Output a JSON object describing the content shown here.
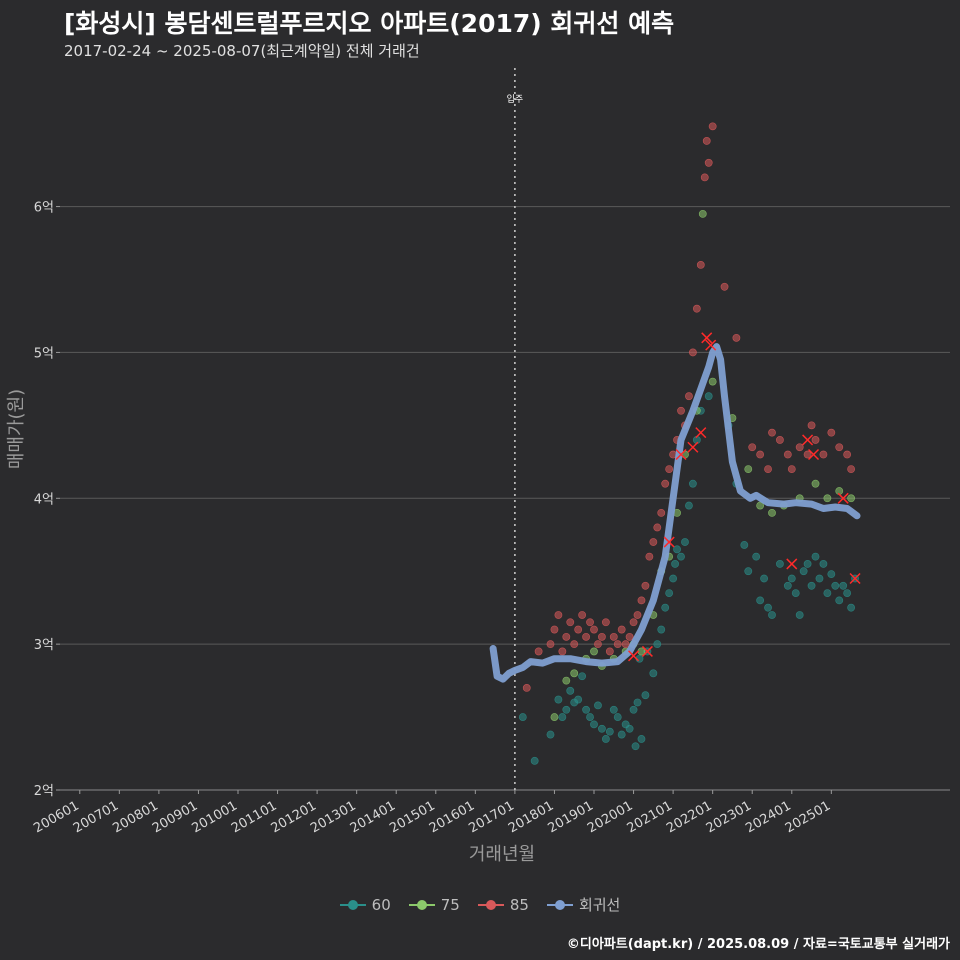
{
  "header": {
    "title": "[화성시] 봉담센트럴푸르지오 아파트(2017) 회귀선 예측",
    "subtitle": "2017-02-24 ~ 2025-08-07(최근계약일) 전체 거래건"
  },
  "caption": "©디아파트(dapt.kr) / 2025.08.09 / 자료=국토교통부 실거래가",
  "colors": {
    "background": "#2b2b2d",
    "grid": "#5a5a5a",
    "s60": "#2a8f8a",
    "s75": "#8cc96b",
    "s85": "#d9595a",
    "regression": "#7f9fd1",
    "highlight": "#ff2a2a"
  },
  "legend": [
    {
      "label": "60",
      "color": "#2a8f8a"
    },
    {
      "label": "75",
      "color": "#8cc96b"
    },
    {
      "label": "85",
      "color": "#d9595a"
    },
    {
      "label": "회귀선",
      "color": "#7f9fd1"
    }
  ],
  "chart_data": {
    "type": "scatter",
    "title": "[화성시] 봉담센트럴푸르지오 아파트(2017) 회귀선 예측",
    "xlabel": "거래년월",
    "ylabel": "매매가(원)",
    "xlim": [
      2005.5,
      2028.0
    ],
    "ylim": [
      2.0,
      6.95
    ],
    "x_ticks": [
      "200601",
      "200701",
      "200801",
      "200901",
      "201001",
      "201101",
      "201201",
      "201301",
      "201401",
      "201501",
      "201601",
      "201701",
      "201801",
      "201901",
      "202001",
      "202101",
      "202201",
      "202301",
      "202401",
      "202501"
    ],
    "y_ticks": [
      {
        "value": 2,
        "label": "2억"
      },
      {
        "value": 3,
        "label": "3억"
      },
      {
        "value": 4,
        "label": "4억"
      },
      {
        "value": 5,
        "label": "5억"
      },
      {
        "value": 6,
        "label": "6억"
      }
    ],
    "annotation": {
      "x": 2017.0,
      "label": "입주"
    },
    "series": [
      {
        "name": "60",
        "color": "#2a8f8a",
        "points": [
          [
            2017.2,
            2.5
          ],
          [
            2017.5,
            2.2
          ],
          [
            2017.9,
            2.38
          ],
          [
            2018.1,
            2.62
          ],
          [
            2018.2,
            2.5
          ],
          [
            2018.3,
            2.55
          ],
          [
            2018.4,
            2.68
          ],
          [
            2018.5,
            2.6
          ],
          [
            2018.6,
            2.62
          ],
          [
            2018.7,
            2.78
          ],
          [
            2018.8,
            2.55
          ],
          [
            2018.9,
            2.5
          ],
          [
            2019.0,
            2.45
          ],
          [
            2019.1,
            2.58
          ],
          [
            2019.2,
            2.42
          ],
          [
            2019.3,
            2.35
          ],
          [
            2019.4,
            2.4
          ],
          [
            2019.5,
            2.55
          ],
          [
            2019.6,
            2.5
          ],
          [
            2019.7,
            2.38
          ],
          [
            2019.8,
            2.45
          ],
          [
            2019.9,
            2.42
          ],
          [
            2020.0,
            2.55
          ],
          [
            2020.05,
            2.3
          ],
          [
            2020.1,
            2.6
          ],
          [
            2020.15,
            2.9
          ],
          [
            2020.2,
            2.35
          ],
          [
            2020.3,
            2.65
          ],
          [
            2020.35,
            2.95
          ],
          [
            2020.5,
            2.8
          ],
          [
            2020.6,
            3.0
          ],
          [
            2020.7,
            3.1
          ],
          [
            2020.8,
            3.25
          ],
          [
            2020.9,
            3.35
          ],
          [
            2021.0,
            3.45
          ],
          [
            2021.05,
            3.55
          ],
          [
            2021.1,
            3.65
          ],
          [
            2021.2,
            3.6
          ],
          [
            2021.3,
            3.7
          ],
          [
            2021.4,
            3.95
          ],
          [
            2021.5,
            4.1
          ],
          [
            2021.6,
            4.4
          ],
          [
            2021.7,
            4.6
          ],
          [
            2021.9,
            4.7
          ],
          [
            2022.4,
            4.5
          ],
          [
            2022.6,
            4.1
          ],
          [
            2022.8,
            3.68
          ],
          [
            2022.9,
            3.5
          ],
          [
            2023.1,
            3.6
          ],
          [
            2023.2,
            3.3
          ],
          [
            2023.3,
            3.45
          ],
          [
            2023.4,
            3.25
          ],
          [
            2023.5,
            3.2
          ],
          [
            2023.7,
            3.55
          ],
          [
            2023.9,
            3.4
          ],
          [
            2024.0,
            3.45
          ],
          [
            2024.1,
            3.35
          ],
          [
            2024.2,
            3.2
          ],
          [
            2024.3,
            3.5
          ],
          [
            2024.4,
            3.55
          ],
          [
            2024.5,
            3.4
          ],
          [
            2024.6,
            3.6
          ],
          [
            2024.7,
            3.45
          ],
          [
            2024.8,
            3.55
          ],
          [
            2024.9,
            3.35
          ],
          [
            2025.0,
            3.48
          ],
          [
            2025.1,
            3.4
          ],
          [
            2025.2,
            3.3
          ],
          [
            2025.3,
            3.4
          ],
          [
            2025.4,
            3.35
          ],
          [
            2025.5,
            3.25
          ],
          [
            2025.6,
            3.45
          ]
        ]
      },
      {
        "name": "75",
        "color": "#8cc96b",
        "points": [
          [
            2018.0,
            2.5
          ],
          [
            2018.3,
            2.75
          ],
          [
            2018.5,
            2.8
          ],
          [
            2018.8,
            2.9
          ],
          [
            2019.0,
            2.95
          ],
          [
            2019.2,
            2.85
          ],
          [
            2019.5,
            2.9
          ],
          [
            2019.8,
            2.95
          ],
          [
            2020.0,
            3.0
          ],
          [
            2020.2,
            2.95
          ],
          [
            2020.5,
            3.2
          ],
          [
            2020.7,
            3.5
          ],
          [
            2020.9,
            3.6
          ],
          [
            2021.1,
            3.9
          ],
          [
            2021.3,
            4.3
          ],
          [
            2021.6,
            4.6
          ],
          [
            2021.75,
            5.95
          ],
          [
            2022.0,
            4.8
          ],
          [
            2022.5,
            4.55
          ],
          [
            2022.9,
            4.2
          ],
          [
            2023.2,
            3.95
          ],
          [
            2023.5,
            3.9
          ],
          [
            2023.8,
            3.95
          ],
          [
            2024.2,
            4.0
          ],
          [
            2024.6,
            4.1
          ],
          [
            2024.9,
            4.0
          ],
          [
            2025.2,
            4.05
          ],
          [
            2025.5,
            4.0
          ]
        ]
      },
      {
        "name": "85",
        "color": "#d9595a",
        "points": [
          [
            2017.3,
            2.7
          ],
          [
            2017.6,
            2.95
          ],
          [
            2017.9,
            3.0
          ],
          [
            2018.0,
            3.1
          ],
          [
            2018.1,
            3.2
          ],
          [
            2018.2,
            2.95
          ],
          [
            2018.3,
            3.05
          ],
          [
            2018.4,
            3.15
          ],
          [
            2018.5,
            3.0
          ],
          [
            2018.6,
            3.1
          ],
          [
            2018.7,
            3.2
          ],
          [
            2018.8,
            3.05
          ],
          [
            2018.9,
            3.15
          ],
          [
            2019.0,
            3.1
          ],
          [
            2019.1,
            3.0
          ],
          [
            2019.2,
            3.05
          ],
          [
            2019.3,
            3.15
          ],
          [
            2019.4,
            2.95
          ],
          [
            2019.5,
            3.05
          ],
          [
            2019.6,
            3.0
          ],
          [
            2019.7,
            3.1
          ],
          [
            2019.8,
            3.0
          ],
          [
            2019.9,
            3.05
          ],
          [
            2020.0,
            3.15
          ],
          [
            2020.1,
            3.2
          ],
          [
            2020.2,
            3.3
          ],
          [
            2020.3,
            3.4
          ],
          [
            2020.4,
            3.6
          ],
          [
            2020.5,
            3.7
          ],
          [
            2020.6,
            3.8
          ],
          [
            2020.7,
            3.9
          ],
          [
            2020.8,
            4.1
          ],
          [
            2020.9,
            4.2
          ],
          [
            2021.0,
            4.3
          ],
          [
            2021.1,
            4.4
          ],
          [
            2021.2,
            4.6
          ],
          [
            2021.3,
            4.5
          ],
          [
            2021.4,
            4.7
          ],
          [
            2021.5,
            5.0
          ],
          [
            2021.6,
            5.3
          ],
          [
            2021.7,
            5.6
          ],
          [
            2021.8,
            6.2
          ],
          [
            2021.85,
            6.45
          ],
          [
            2021.9,
            6.3
          ],
          [
            2022.0,
            6.55
          ],
          [
            2022.3,
            5.45
          ],
          [
            2022.6,
            5.1
          ],
          [
            2023.0,
            4.35
          ],
          [
            2023.2,
            4.3
          ],
          [
            2023.4,
            4.2
          ],
          [
            2023.5,
            4.45
          ],
          [
            2023.7,
            4.4
          ],
          [
            2023.9,
            4.3
          ],
          [
            2024.0,
            4.2
          ],
          [
            2024.2,
            4.35
          ],
          [
            2024.4,
            4.3
          ],
          [
            2024.5,
            4.5
          ],
          [
            2024.6,
            4.4
          ],
          [
            2024.8,
            4.3
          ],
          [
            2025.0,
            4.45
          ],
          [
            2025.2,
            4.35
          ],
          [
            2025.4,
            4.3
          ],
          [
            2025.5,
            4.2
          ]
        ]
      },
      {
        "name": "회귀선",
        "color": "#7f9fd1",
        "points": [
          [
            2016.45,
            2.97
          ],
          [
            2016.55,
            2.78
          ],
          [
            2016.7,
            2.76
          ],
          [
            2016.85,
            2.8
          ],
          [
            2017.0,
            2.82
          ],
          [
            2017.2,
            2.84
          ],
          [
            2017.4,
            2.88
          ],
          [
            2017.7,
            2.87
          ],
          [
            2018.0,
            2.9
          ],
          [
            2018.4,
            2.9
          ],
          [
            2018.8,
            2.88
          ],
          [
            2019.2,
            2.87
          ],
          [
            2019.6,
            2.88
          ],
          [
            2019.9,
            2.95
          ],
          [
            2020.2,
            3.1
          ],
          [
            2020.5,
            3.3
          ],
          [
            2020.8,
            3.6
          ],
          [
            2021.0,
            4.0
          ],
          [
            2021.2,
            4.4
          ],
          [
            2021.5,
            4.6
          ],
          [
            2021.7,
            4.75
          ],
          [
            2021.9,
            4.9
          ],
          [
            2022.0,
            5.0
          ],
          [
            2022.1,
            5.04
          ],
          [
            2022.2,
            4.95
          ],
          [
            2022.3,
            4.7
          ],
          [
            2022.5,
            4.25
          ],
          [
            2022.7,
            4.05
          ],
          [
            2022.95,
            4.0
          ],
          [
            2023.1,
            4.02
          ],
          [
            2023.4,
            3.97
          ],
          [
            2023.8,
            3.96
          ],
          [
            2024.1,
            3.97
          ],
          [
            2024.5,
            3.96
          ],
          [
            2024.8,
            3.93
          ],
          [
            2025.1,
            3.94
          ],
          [
            2025.4,
            3.93
          ],
          [
            2025.65,
            3.88
          ]
        ]
      }
    ],
    "highlights": [
      [
        2020.0,
        2.92
      ],
      [
        2020.35,
        2.95
      ],
      [
        2020.9,
        3.7
      ],
      [
        2021.2,
        4.3
      ],
      [
        2021.5,
        4.35
      ],
      [
        2021.7,
        4.45
      ],
      [
        2021.85,
        5.1
      ],
      [
        2021.95,
        5.05
      ],
      [
        2024.0,
        3.55
      ],
      [
        2024.4,
        4.4
      ],
      [
        2024.55,
        4.3
      ],
      [
        2025.3,
        4.0
      ],
      [
        2025.6,
        3.45
      ]
    ]
  }
}
